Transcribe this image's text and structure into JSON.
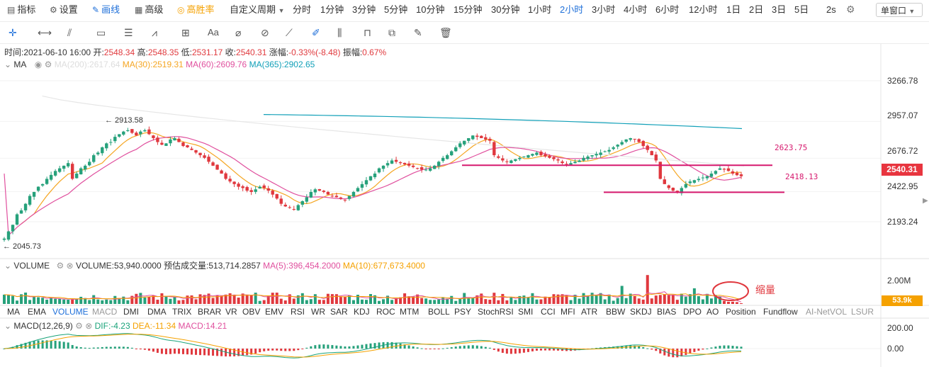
{
  "toolbar": {
    "left_items": [
      {
        "icon": "indicator-icon",
        "label": "指标"
      },
      {
        "icon": "settings-icon",
        "label": "设置"
      },
      {
        "icon": "draw-icon",
        "label": "画线"
      },
      {
        "icon": "advanced-icon",
        "label": "高级"
      },
      {
        "icon": "winrate-icon",
        "label": "高胜率"
      }
    ],
    "custom_period": "自定义周期",
    "periods": [
      "分时",
      "1分钟",
      "3分钟",
      "5分钟",
      "10分钟",
      "15分钟",
      "30分钟",
      "1小时",
      "2小时",
      "3小时",
      "4小时",
      "6小时",
      "12小时",
      "1日",
      "2日",
      "3日",
      "5日"
    ],
    "active_period": "2小时",
    "refresh": "2s",
    "window_mode": "单窗口"
  },
  "drawing_tools": [
    "crosshair",
    "horizontal-line",
    "trend-lines",
    "rectangle",
    "fib-lines",
    "wave",
    "measure",
    "text",
    "brush",
    "eraser",
    "ruler",
    "pencil",
    "pattern",
    "lock",
    "copy",
    "edit",
    "delete"
  ],
  "ohlc": {
    "time_label": "时间:",
    "time": "2021-06-10 16:00",
    "open_label": "开:",
    "open": "2548.34",
    "high_label": "高:",
    "high": "2548.35",
    "low_label": "低:",
    "low": "2531.17",
    "close_label": "收:",
    "close": "2540.31",
    "change_label": "涨幅:",
    "change": "-0.33%(-8.48)",
    "amp_label": "振幅:",
    "amp": "0.67%"
  },
  "ma_legend": {
    "name": "MA",
    "items": [
      {
        "label": "MA(200):2617.64",
        "color": "#dddddd"
      },
      {
        "label": "MA(30):2519.31",
        "color": "#f5a623"
      },
      {
        "label": "MA(60):2609.76",
        "color": "#e0509e"
      },
      {
        "label": "MA(365):2902.65",
        "color": "#12a0b8"
      }
    ]
  },
  "price_axis": {
    "ticks": [
      "3266.78",
      "2957.07",
      "2676.72",
      "2422.95",
      "2193.24"
    ],
    "current": "2540.31"
  },
  "annotations": {
    "max_label": "← 2913.58",
    "min_label": "← 2045.73",
    "resistance": "2623.75",
    "support": "2418.13",
    "volume_note": "缩量"
  },
  "volume_legend": {
    "name": "VOLUME",
    "value": "VOLUME:53,940.0000",
    "est_label": "预估成交量:513,714.2857",
    "ma5": "MA(5):396,454.2000",
    "ma10": "MA(10):677,673.4000"
  },
  "volume_axis": {
    "top": "2.00M",
    "current": "53.9k"
  },
  "indicator_tabs": [
    "MA",
    "EMA",
    "VOLUME",
    "MACD",
    "DMI",
    "DMA",
    "TRIX",
    "BRAR",
    "VR",
    "OBV",
    "EMV",
    "RSI",
    "WR",
    "SAR",
    "KDJ",
    "ROC",
    "MTM",
    "BOLL",
    "PSY",
    "StochRSI",
    "SMI",
    "CCI",
    "MFI",
    "ATR",
    "BBW",
    "SKDJ",
    "BIAS",
    "DPO",
    "AO",
    "Position",
    "Fundflow",
    "AI-NetVOL",
    "LSUR"
  ],
  "macd_legend": {
    "name": "MACD(12,26,9)",
    "dif": "DIF:-4.23",
    "dea": "DEA:-11.34",
    "macd": "MACD:14.21"
  },
  "macd_axis": [
    "200.00",
    "0.00"
  ],
  "colors": {
    "up": "#26a17b",
    "down": "#e0383e",
    "accent": "#1e6fd9",
    "hline": "#d6196e"
  },
  "chart_data": {
    "type": "candlestick",
    "interval": "2小时",
    "last_bar_time": "2021-06-10 16:00",
    "close": [
      2065,
      2120,
      2170,
      2250,
      2280,
      2330,
      2390,
      2420,
      2460,
      2480,
      2520,
      2550,
      2580,
      2600,
      2620,
      2640,
      2520,
      2560,
      2600,
      2620,
      2650,
      2700,
      2720,
      2760,
      2790,
      2800,
      2840,
      2860,
      2880,
      2890,
      2870,
      2850,
      2880,
      2890,
      2860,
      2830,
      2800,
      2780,
      2790,
      2820,
      2830,
      2800,
      2770,
      2760,
      2740,
      2720,
      2700,
      2680,
      2650,
      2620,
      2590,
      2560,
      2520,
      2500,
      2480,
      2460,
      2450,
      2430,
      2420,
      2440,
      2460,
      2450,
      2430,
      2400,
      2370,
      2330,
      2310,
      2300,
      2290,
      2320,
      2350,
      2380,
      2420,
      2440,
      2430,
      2420,
      2400,
      2390,
      2380,
      2370,
      2360,
      2390,
      2420,
      2450,
      2480,
      2510,
      2540,
      2560,
      2600,
      2620,
      2640,
      2660,
      2650,
      2640,
      2630,
      2620,
      2610,
      2600,
      2590,
      2590,
      2600,
      2620,
      2650,
      2680,
      2700,
      2730,
      2760,
      2790,
      2810,
      2830,
      2850,
      2840,
      2830,
      2820,
      2810,
      2700,
      2680,
      2660,
      2650,
      2660,
      2670,
      2680,
      2690,
      2700,
      2710,
      2720,
      2700,
      2690,
      2680,
      2670,
      2660,
      2640,
      2630,
      2640,
      2650,
      2660,
      2680,
      2690,
      2700,
      2710,
      2720,
      2730,
      2740,
      2760,
      2780,
      2800,
      2820,
      2830,
      2820,
      2800,
      2770,
      2740,
      2700,
      2660,
      2520,
      2480,
      2450,
      2430,
      2420,
      2450,
      2480,
      2500,
      2510,
      2520,
      2530,
      2540,
      2560,
      2580,
      2600,
      2590,
      2580,
      2560,
      2548,
      2540
    ],
    "ma365_range": [
      3010,
      2902.65
    ],
    "ma200_last": 2617.64,
    "ma30_last": 2519.31,
    "ma60_last": 2609.76,
    "hlines": [
      2623.75,
      2418.13
    ],
    "max_price": 2913.58,
    "min_price": 2045.73,
    "price_ticks": [
      3266.78,
      2957.07,
      2676.72,
      2422.95,
      2193.24
    ],
    "volume_last": 53940,
    "volume_ma5": 396454.2,
    "volume_ma10": 677673.4,
    "volume_max": 2000000,
    "macd": {
      "dif": -4.23,
      "dea": -11.34,
      "hist": 14.21,
      "ticks": [
        200,
        0
      ]
    }
  }
}
